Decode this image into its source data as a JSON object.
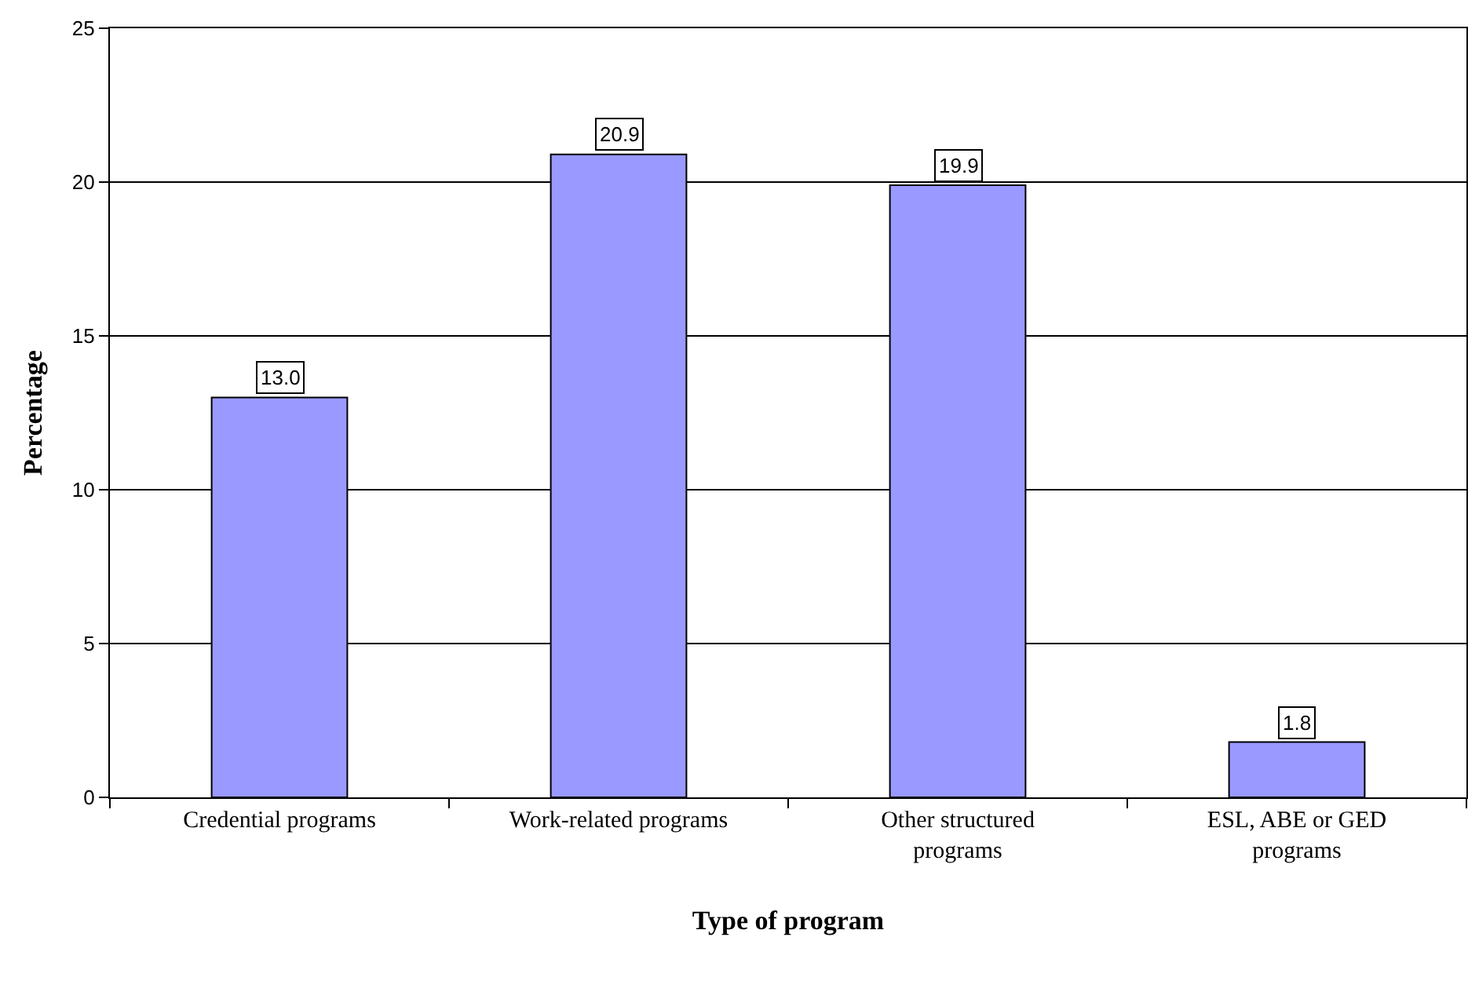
{
  "chart_data": {
    "type": "bar",
    "xlabel": "Type of program",
    "ylabel": "Percentage",
    "categories": [
      "Credential programs",
      "Work-related programs",
      "Other structured programs",
      "ESL, ABE or GED programs"
    ],
    "values": [
      13.0,
      20.9,
      19.9,
      1.8
    ],
    "value_labels": [
      "13.0",
      "20.9",
      "19.9",
      "1.8"
    ],
    "color": "#9999ff",
    "ylim": [
      0,
      25
    ],
    "yticks": [
      0,
      5,
      10,
      15,
      20,
      25
    ],
    "grid": "y",
    "legend": false
  }
}
